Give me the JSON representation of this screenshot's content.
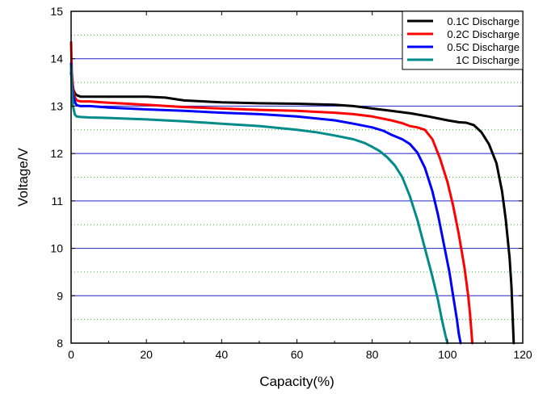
{
  "chart_data": {
    "type": "line",
    "xlabel": "Capacity(%)",
    "ylabel": "Voltage/V",
    "xlim": [
      0,
      120
    ],
    "ylim": [
      8,
      15
    ],
    "x_ticks": [
      "0",
      "20",
      "40",
      "60",
      "80",
      "100",
      "120"
    ],
    "y_ticks": [
      "8",
      "9",
      "10",
      "11",
      "12",
      "13",
      "14",
      "15"
    ],
    "grid": {
      "major_horizontal": true,
      "major_color": "#2323c8",
      "minor_horizontal": true,
      "minor_color": "#33bb33",
      "vertical": false
    },
    "legend_position": "top-right",
    "series": [
      {
        "name": "0.1C Discharge",
        "color": "#000000",
        "x": [
          0,
          0.3,
          0.6,
          1.0,
          1.5,
          2.5,
          5,
          10,
          20,
          25,
          30,
          40,
          50,
          60,
          70,
          75,
          80,
          85,
          90,
          95,
          100,
          103,
          105,
          107,
          109,
          111,
          113,
          114.5,
          115.5,
          116.5,
          117,
          117.3,
          117.6
        ],
        "y": [
          13.7,
          13.5,
          13.35,
          13.27,
          13.23,
          13.2,
          13.2,
          13.2,
          13.2,
          13.18,
          13.12,
          13.08,
          13.06,
          13.05,
          13.03,
          13.0,
          12.95,
          12.9,
          12.85,
          12.78,
          12.7,
          12.66,
          12.65,
          12.6,
          12.45,
          12.2,
          11.8,
          11.2,
          10.6,
          9.8,
          9.2,
          8.6,
          8.0
        ]
      },
      {
        "name": "0.2C Discharge",
        "color": "#ff0000",
        "x": [
          0,
          0.2,
          0.5,
          0.9,
          1.5,
          2.5,
          5,
          10,
          20,
          30,
          40,
          50,
          60,
          70,
          75,
          80,
          85,
          88,
          90,
          92,
          94,
          96,
          98,
          100,
          101.5,
          103,
          104.5,
          105.5,
          106,
          106.3,
          106.6
        ],
        "y": [
          14.35,
          13.7,
          13.4,
          13.2,
          13.12,
          13.1,
          13.1,
          13.07,
          13.03,
          12.98,
          12.95,
          12.92,
          12.9,
          12.86,
          12.83,
          12.78,
          12.7,
          12.64,
          12.58,
          12.55,
          12.5,
          12.3,
          11.9,
          11.4,
          10.9,
          10.3,
          9.6,
          9.0,
          8.6,
          8.3,
          8.0
        ]
      },
      {
        "name": "0.5C Discharge",
        "color": "#0000ff",
        "x": [
          0,
          0.2,
          0.5,
          1.0,
          1.5,
          2.5,
          5,
          10,
          20,
          30,
          40,
          50,
          60,
          70,
          75,
          80,
          83,
          85,
          88,
          90,
          92,
          94,
          96,
          97.5,
          99,
          100.5,
          101.5,
          102.5,
          103,
          103.5
        ],
        "y": [
          13.9,
          13.55,
          13.25,
          13.08,
          13.02,
          13.0,
          13.0,
          12.97,
          12.93,
          12.9,
          12.86,
          12.83,
          12.78,
          12.7,
          12.63,
          12.55,
          12.48,
          12.4,
          12.3,
          12.2,
          12.02,
          11.7,
          11.2,
          10.7,
          10.1,
          9.5,
          9.0,
          8.5,
          8.2,
          8.0
        ]
      },
      {
        "name": "1C Discharge",
        "color": "#008b8b",
        "x": [
          0,
          0.2,
          0.5,
          1.0,
          1.5,
          2.5,
          5,
          10,
          20,
          30,
          40,
          50,
          60,
          65,
          70,
          75,
          78,
          80,
          82,
          84,
          86,
          88,
          90,
          92,
          94,
          96,
          97.5,
          98.5,
          99.5,
          100
        ],
        "y": [
          13.85,
          13.4,
          13.0,
          12.82,
          12.78,
          12.77,
          12.76,
          12.75,
          12.72,
          12.68,
          12.63,
          12.58,
          12.5,
          12.45,
          12.38,
          12.3,
          12.22,
          12.14,
          12.05,
          11.92,
          11.75,
          11.5,
          11.1,
          10.6,
          10.0,
          9.4,
          8.9,
          8.5,
          8.15,
          8.0
        ]
      }
    ]
  }
}
